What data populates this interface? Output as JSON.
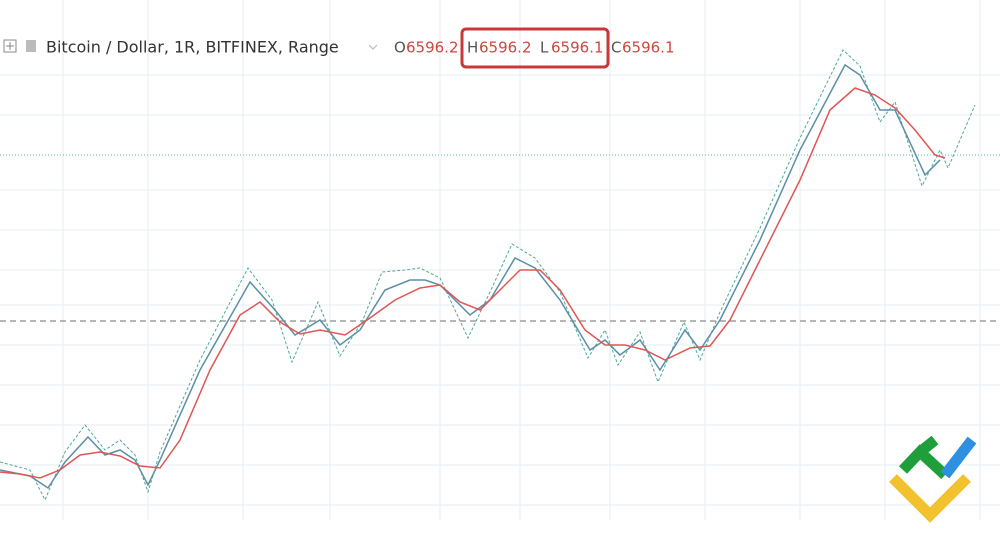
{
  "header": {
    "symbol": "Bitcoin / Dollar, 1R, BITFINEX, Range",
    "ohlc": [
      {
        "label": "O",
        "value": "6596.2"
      },
      {
        "label": "H",
        "value": "6596.2"
      },
      {
        "label": "L",
        "value": "6596.1"
      },
      {
        "label": "C",
        "value": "6596.1"
      }
    ]
  }
}
